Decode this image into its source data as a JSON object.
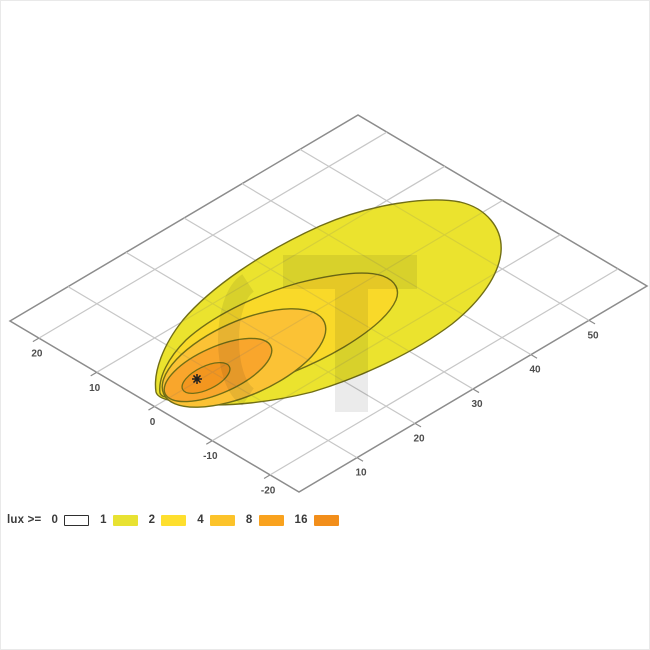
{
  "legend": {
    "title": "lux >=",
    "items": [
      {
        "label": "0",
        "color": "#ffffff"
      },
      {
        "label": "1",
        "color": "#e8e232"
      },
      {
        "label": "2",
        "color": "#fedf2e"
      },
      {
        "label": "4",
        "color": "#fcc32a"
      },
      {
        "label": "8",
        "color": "#f9a21e"
      },
      {
        "label": "16",
        "color": "#f28e1a"
      }
    ]
  },
  "chart_data": {
    "type": "contour",
    "quantity": "lux",
    "title": "",
    "x_ticks": [
      10,
      20,
      30,
      40,
      50
    ],
    "y_ticks": [
      20,
      10,
      0,
      -10,
      -20
    ],
    "x_range": [
      0,
      60
    ],
    "y_range": [
      -25,
      25
    ],
    "grid": true,
    "levels": [
      {
        "lux": 1,
        "fill": "#ebe32e",
        "reach_along_beam": 52
      },
      {
        "lux": 2,
        "fill": "#f9d929",
        "reach_along_beam": 38
      },
      {
        "lux": 4,
        "fill": "#fbc235",
        "reach_along_beam": 27
      },
      {
        "lux": 8,
        "fill": "#f9a62c",
        "reach_along_beam": 19
      },
      {
        "lux": 16,
        "fill": "#f3961f",
        "reach_along_beam": 13
      }
    ],
    "beam_center_marker": {
      "x": 2,
      "y": 1
    },
    "contour_line_color": "#716e15",
    "grid_color": "#d9d9d9",
    "border_color": "#8c8c8c",
    "marker_color": "#1f1f1f",
    "watermark_letter": "T"
  }
}
